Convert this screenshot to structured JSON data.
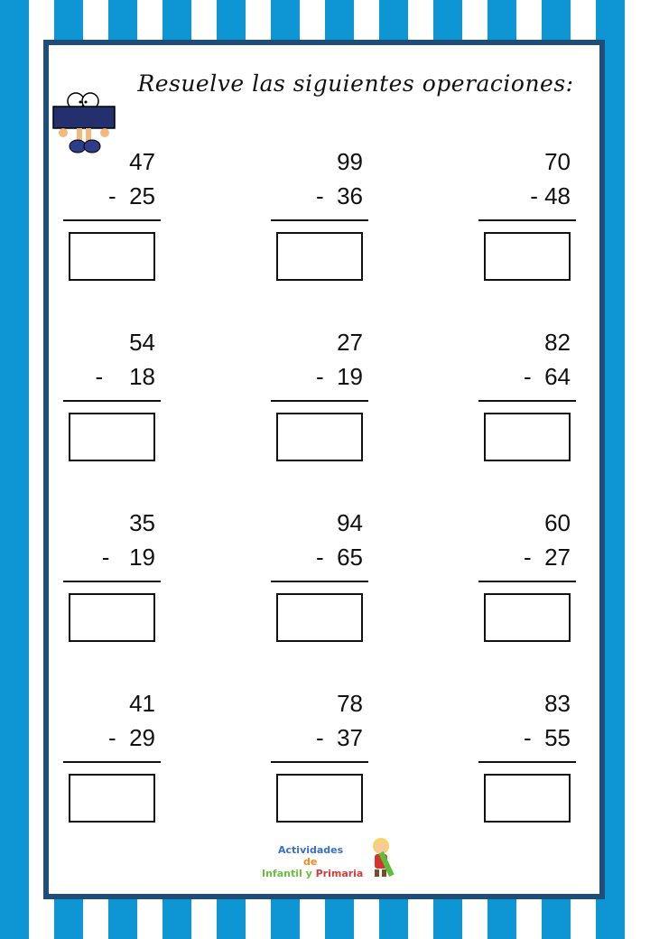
{
  "title": "Resuelve las siguientes operaciones:",
  "colors": {
    "stripe": "#0e96d4",
    "frame": "#1f4e79"
  },
  "mascot": "number-block-character",
  "problems": [
    {
      "top": "47",
      "bottom": "-  25"
    },
    {
      "top": "99",
      "bottom": "-  36"
    },
    {
      "top": "70",
      "bottom": "- 48"
    },
    {
      "top": "54",
      "bottom": "-    18"
    },
    {
      "top": "27",
      "bottom": "-  19"
    },
    {
      "top": "82",
      "bottom": "-  64"
    },
    {
      "top": "35",
      "bottom": "-   19"
    },
    {
      "top": "94",
      "bottom": "-  65"
    },
    {
      "top": "60",
      "bottom": "-  27"
    },
    {
      "top": "41",
      "bottom": "-  29"
    },
    {
      "top": "78",
      "bottom": "-  37"
    },
    {
      "top": "83",
      "bottom": "-  55"
    }
  ],
  "logo": {
    "line1": "Actividades",
    "line2": "de",
    "line3a": "Infantil y ",
    "line3b": "Primaria"
  }
}
